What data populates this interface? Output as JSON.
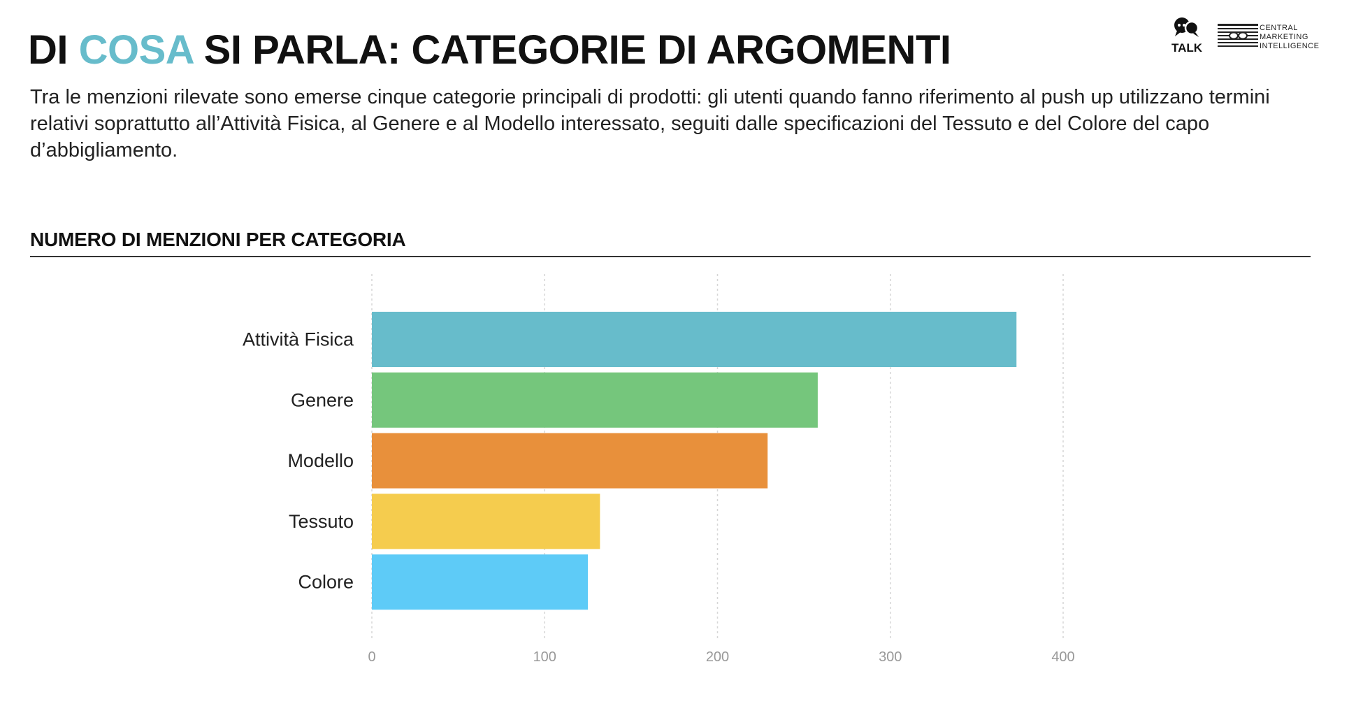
{
  "title": {
    "part1": "DI",
    "accent": "COSA",
    "part2": "SI PARLA: CATEGORIE DI ARGOMENTI"
  },
  "intro": "Tra le menzioni rilevate sono emerse cinque categorie principali di prodotti: gli utenti quando fanno riferimento al push up utilizzano termini relativi soprattutto all’Attività Fisica, al Genere e al Modello interessato, seguiti dalle specificazioni del Tessuto e del Colore del capo d’abbigliamento.",
  "logos": {
    "talk": "TALK",
    "cmi_lines": [
      "CENTRAL",
      "MARKETING",
      "INTELLIGENCE"
    ]
  },
  "colors": {
    "accent": "#67bccb",
    "grid": "#d6d6d6",
    "tick": "#999999"
  },
  "chart_data": {
    "type": "bar",
    "orientation": "horizontal",
    "title": "NUMERO DI MENZIONI PER CATEGORIA",
    "categories": [
      "Attività Fisica",
      "Genere",
      "Modello",
      "Tessuto",
      "Colore"
    ],
    "values": [
      373,
      258,
      229,
      132,
      125
    ],
    "colors": [
      "#67bccb",
      "#75c67c",
      "#e8903b",
      "#f5cc4e",
      "#5ecbf7"
    ],
    "xlim": [
      0,
      400
    ],
    "xticks": [
      0,
      100,
      200,
      300,
      400
    ],
    "grid": "vertical-dashed",
    "legend": "none",
    "xlabel": "",
    "ylabel": ""
  }
}
